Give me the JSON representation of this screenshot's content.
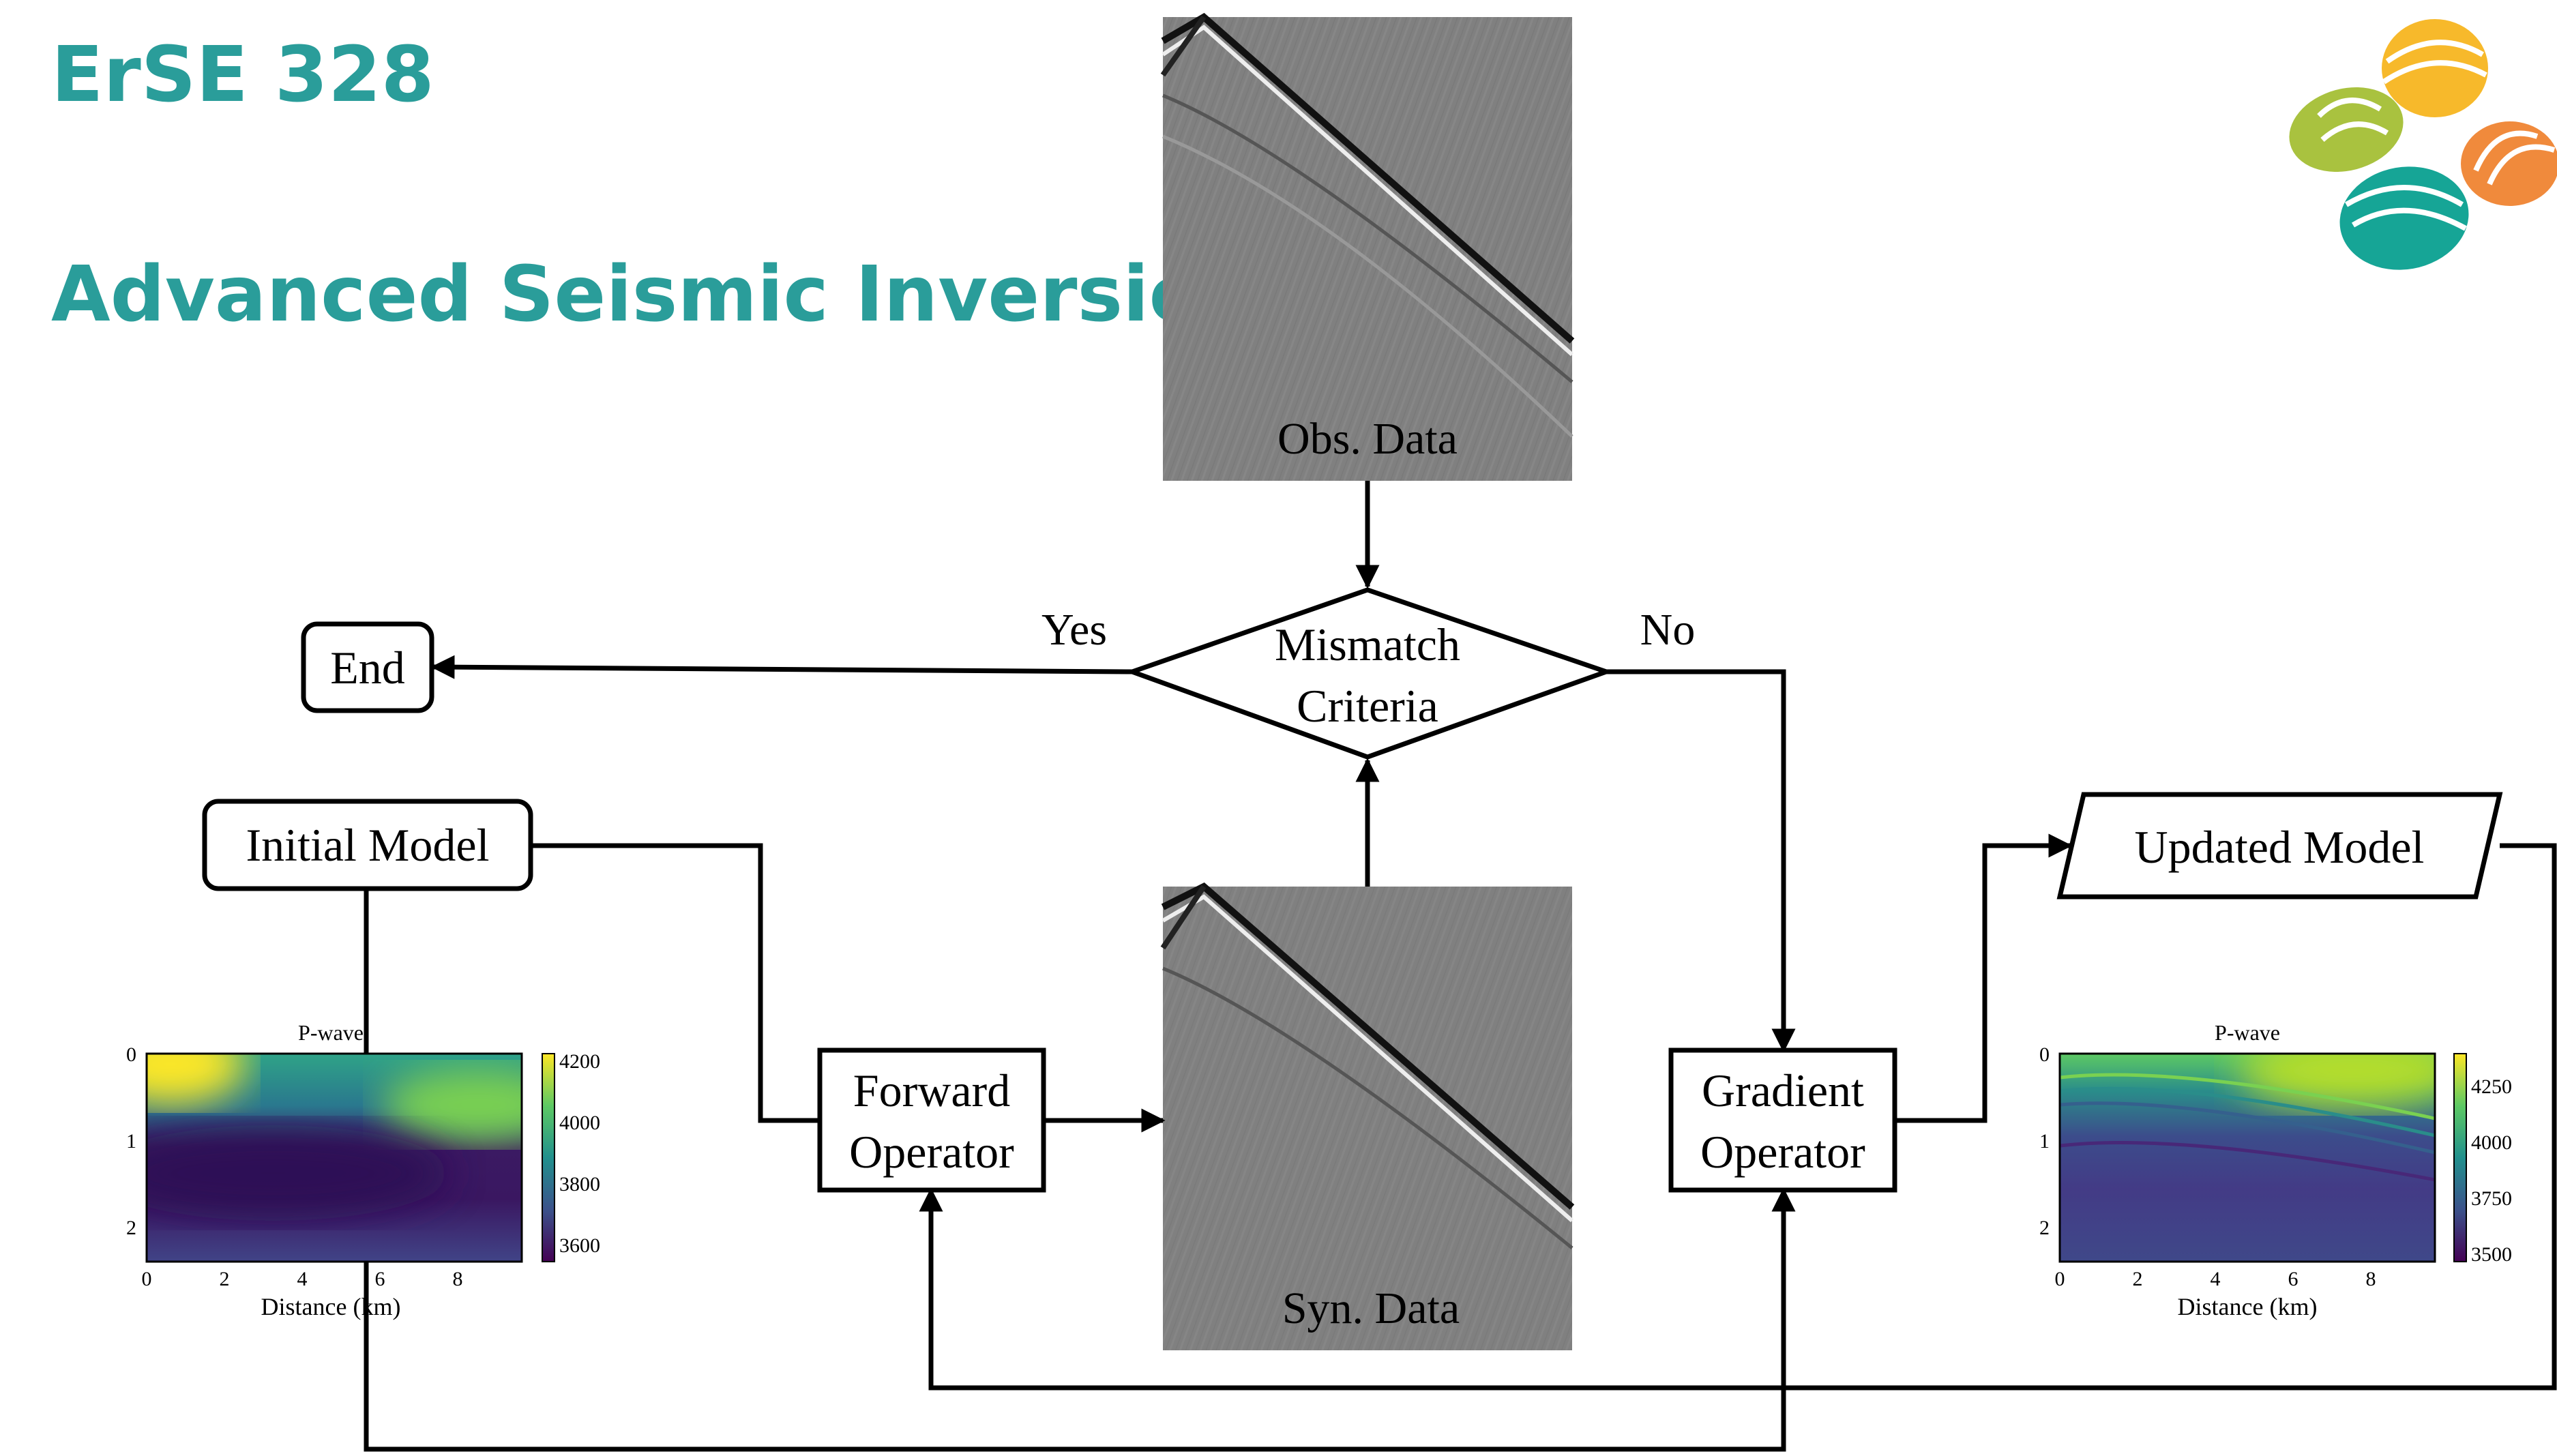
{
  "header": {
    "course_code": "ErSE 328",
    "course_title": "Advanced Seismic Inversion"
  },
  "logo": {
    "icon": "kaust-logo-icon",
    "colors": [
      "#f7b92b",
      "#f08a3c",
      "#a9c23f",
      "#16a596"
    ]
  },
  "flowchart": {
    "obs_data_label": "Obs. Data",
    "syn_data_label": "Syn. Data",
    "mismatch_line1": "Mismatch",
    "mismatch_line2": "Criteria",
    "yes_label": "Yes",
    "no_label": "No",
    "end_label": "End",
    "initial_model_label": "Initial Model",
    "updated_model_label": "Updated Model",
    "forward_line1": "Forward",
    "forward_line2": "Operator",
    "gradient_line1": "Gradient",
    "gradient_line2": "Operator"
  },
  "initial_plot": {
    "title": "P-wave",
    "xlabel": "Distance (km)",
    "xticks": [
      "0",
      "2",
      "4",
      "6",
      "8"
    ],
    "yticks": [
      "0",
      "1",
      "2"
    ],
    "colorbar_ticks": [
      "4200",
      "4000",
      "3800",
      "3600"
    ]
  },
  "updated_plot": {
    "title": "P-wave",
    "xlabel": "Distance (km)",
    "xticks": [
      "0",
      "2",
      "4",
      "6",
      "8"
    ],
    "yticks": [
      "0",
      "1",
      "2"
    ],
    "colorbar_ticks": [
      "4250",
      "4000",
      "3750",
      "3500"
    ]
  },
  "colors": {
    "title": "#2a9d9a",
    "seismic_bg": "#808080"
  }
}
